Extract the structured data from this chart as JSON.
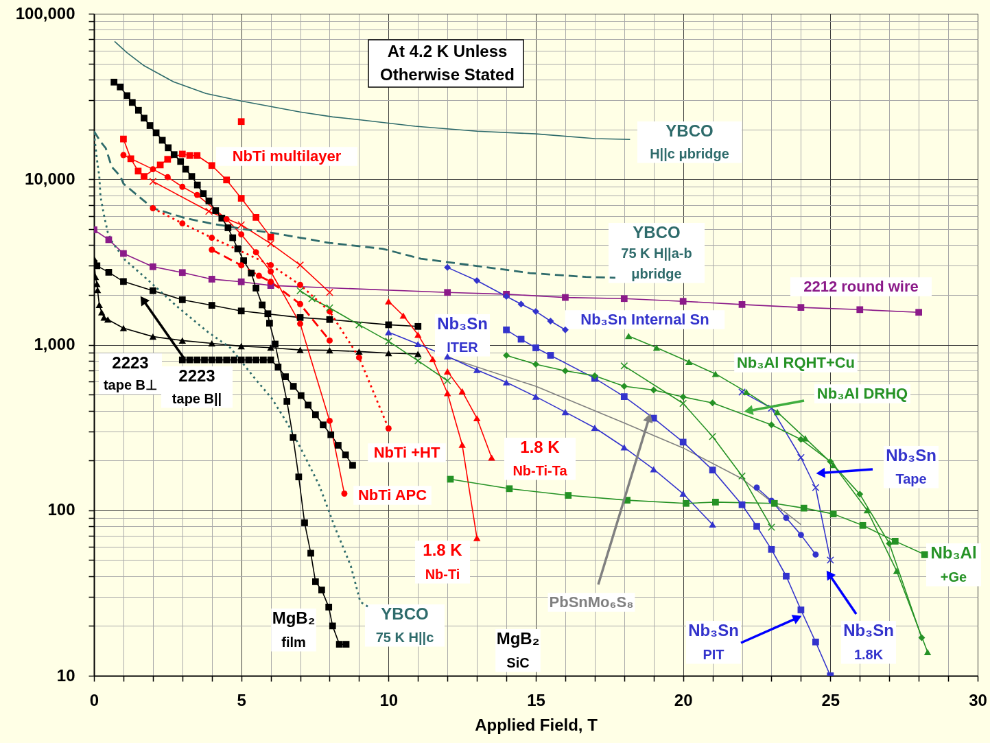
{
  "chart_data": {
    "type": "line",
    "xlabel": "Applied Field, T",
    "log": true,
    "grid": true,
    "xlim": [
      0,
      30
    ],
    "xticks": [
      0,
      {
        "value": 1,
        "label": null
      },
      {
        "value": 2,
        "label": null
      },
      {
        "value": 3,
        "label": null
      },
      {
        "value": 4,
        "label": null
      },
      5,
      {
        "value": 6,
        "label": null
      },
      {
        "value": 7,
        "label": null
      },
      {
        "value": 8,
        "label": null
      },
      {
        "value": 9,
        "label": null
      },
      10,
      {
        "value": 11,
        "label": null
      },
      {
        "value": 12,
        "label": null
      },
      {
        "value": 13,
        "label": null
      },
      {
        "value": 14,
        "label": null
      },
      15,
      {
        "value": 16,
        "label": null
      },
      {
        "value": 17,
        "label": null
      },
      {
        "value": 18,
        "label": null
      },
      {
        "value": 19,
        "label": null
      },
      20,
      {
        "value": 21,
        "label": null
      },
      {
        "value": 22,
        "label": null
      },
      {
        "value": 23,
        "label": null
      },
      {
        "value": 24,
        "label": null
      },
      25,
      {
        "value": 26,
        "label": null
      },
      {
        "value": 27,
        "label": null
      },
      {
        "value": 28,
        "label": null
      },
      {
        "value": 29,
        "label": null
      },
      30
    ],
    "ylim": [
      10,
      100000
    ],
    "yticks": [
      10,
      {
        "value": 20,
        "label": null
      },
      {
        "value": 30,
        "label": null
      },
      {
        "value": 40,
        "label": null
      },
      {
        "value": 50,
        "label": null
      },
      {
        "value": 60,
        "label": null
      },
      {
        "value": 70,
        "label": null
      },
      {
        "value": 80,
        "label": null
      },
      {
        "value": 90,
        "label": null
      },
      100,
      {
        "value": 200,
        "label": null
      },
      {
        "value": 300,
        "label": null
      },
      {
        "value": 400,
        "label": null
      },
      {
        "value": 500,
        "label": null
      },
      {
        "value": 600,
        "label": null
      },
      {
        "value": 700,
        "label": null
      },
      {
        "value": 800,
        "label": null
      },
      {
        "value": 900,
        "label": null
      },
      {
        "value": 1000,
        "label": "1,000"
      },
      {
        "value": 2000,
        "label": null
      },
      {
        "value": 3000,
        "label": null
      },
      {
        "value": 4000,
        "label": null
      },
      {
        "value": 5000,
        "label": null
      },
      {
        "value": 6000,
        "label": null
      },
      {
        "value": 7000,
        "label": null
      },
      {
        "value": 8000,
        "label": null
      },
      {
        "value": 9000,
        "label": null
      },
      {
        "value": 10000,
        "label": "10,000"
      },
      {
        "value": 20000,
        "label": null
      },
      {
        "value": 30000,
        "label": null
      },
      {
        "value": 40000,
        "label": null
      },
      {
        "value": 50000,
        "label": null
      },
      {
        "value": 60000,
        "label": null
      },
      {
        "value": 70000,
        "label": null
      },
      {
        "value": 80000,
        "label": null
      },
      {
        "value": 90000,
        "label": null
      },
      {
        "value": 100000,
        "label": "100,000"
      }
    ],
    "annotations": [
      "At 4.2 K Unless\nOtherwise Stated"
    ],
    "series": [
      {
        "name": "YBCO\nH||c μbridge",
        "color": "#2e6b6b",
        "marker": "none",
        "line_style": "solid",
        "x": [
          0.7,
          1.1,
          1.7,
          2.7,
          3.8,
          5,
          6,
          7,
          8.1,
          9,
          10.9,
          13,
          15,
          17,
          18.2
        ],
        "values": [
          68000,
          58500,
          48500,
          38800,
          33000,
          29700,
          27500,
          25500,
          23800,
          22900,
          20900,
          19500,
          18800,
          17600,
          17400
        ]
      },
      {
        "name": "YBCO\n75 K H||a-b\nμbridge",
        "color": "#2e6b6b",
        "marker": "none",
        "line_style": "dashed",
        "x": [
          0,
          0.2,
          0.4,
          0.6,
          0.9,
          1,
          2,
          3.1,
          4,
          5.1,
          6,
          7.2,
          8,
          9.8,
          11.1,
          12.9,
          14.8,
          16.7,
          17.7
        ],
        "values": [
          19500,
          17100,
          15400,
          11900,
          10400,
          9400,
          6680,
          5820,
          5390,
          4990,
          4760,
          4370,
          4120,
          3800,
          3310,
          3010,
          2710,
          2570,
          2540
        ]
      },
      {
        "name": "YBCO\n75 K H||c",
        "color": "#2e6b6b",
        "marker": "none",
        "line_style": "dotted",
        "x": [
          0,
          0.1,
          0.18,
          0.22,
          0.34,
          0.47,
          0.63,
          1.05,
          1.8,
          2.8,
          3.85,
          4.63,
          5.5,
          6.04,
          6.58,
          7.1,
          7.65,
          8.19,
          8.72,
          9.04,
          9.32
        ],
        "values": [
          19000,
          13200,
          10400,
          7900,
          6050,
          4760,
          4140,
          3260,
          2490,
          1715,
          1200,
          958,
          614,
          473,
          332,
          222,
          141,
          78,
          46,
          28,
          26
        ]
      },
      {
        "name": "2212 round wire",
        "color": "#8b1a89",
        "marker": "square",
        "line_style": "solid",
        "x": [
          0,
          0.5,
          1,
          2,
          3,
          4,
          5,
          6,
          12,
          14,
          16,
          18,
          20,
          22,
          24,
          26,
          28
        ],
        "values": [
          4950,
          4310,
          3560,
          2960,
          2730,
          2490,
          2400,
          2280,
          2070,
          2020,
          1930,
          1900,
          1830,
          1750,
          1680,
          1630,
          1570
        ]
      },
      {
        "name": "2223\ntape B||",
        "color": "#000000",
        "marker": "square",
        "line_style": "solid",
        "x": [
          0,
          0.1,
          0.5,
          1,
          2,
          3,
          4,
          5,
          7,
          8,
          10,
          11
        ],
        "values": [
          3100,
          3000,
          2740,
          2410,
          2120,
          1870,
          1730,
          1600,
          1460,
          1420,
          1320,
          1290
        ]
      },
      {
        "name": "2223\ntape B⊥",
        "color": "#000000",
        "marker": "triangle",
        "line_style": "solid",
        "x": [
          0,
          0.05,
          0.1,
          0.12,
          0.18,
          0.26,
          0.34,
          0.47,
          1,
          2,
          3,
          4,
          5,
          6,
          7,
          8,
          9,
          10,
          11
        ],
        "values": [
          3320,
          2570,
          2330,
          2140,
          1740,
          1570,
          1460,
          1420,
          1260,
          1120,
          1060,
          1020,
          980,
          960,
          930,
          925,
          910,
          890,
          880
        ]
      },
      {
        "name": "MgB₂\nfilm",
        "color": "#000000",
        "marker": "square",
        "line_style": "solid",
        "x": [
          0.68,
          0.89,
          1.12,
          1.3,
          1.51,
          1.7,
          1.9,
          2.11,
          2.32,
          2.52,
          2.72,
          2.94,
          3.11,
          3.32,
          3.51,
          3.71,
          3.9,
          4.13,
          4.34,
          4.55,
          4.71,
          4.88,
          5.08,
          5.34,
          5.5,
          5.71,
          5.9,
          5.96,
          6.15,
          6.55,
          6.76,
          6.95,
          7.15,
          7.36,
          7.52,
          7.73,
          7.97,
          8.1,
          8.33,
          8.56
        ],
        "values": [
          38600,
          36100,
          32000,
          29100,
          26100,
          23400,
          21100,
          19100,
          17200,
          15500,
          14100,
          12800,
          11500,
          10400,
          9230,
          8190,
          7390,
          6460,
          5820,
          5090,
          4430,
          3800,
          3220,
          2710,
          2200,
          1740,
          1540,
          1350,
          1010,
          455,
          275,
          159,
          84,
          55,
          37,
          33,
          26,
          20,
          15.5,
          15.5
        ]
      },
      {
        "name": "MgB₂\nSiC",
        "color": "#000000",
        "marker": "square",
        "line_style": "solid",
        "x": [
          3,
          3.25,
          3.5,
          3.75,
          4,
          4.25,
          4.5,
          4.75,
          5,
          5.25,
          5.5,
          5.75,
          6,
          6.25,
          6.5,
          6.77,
          7.03,
          7.27,
          7.52,
          7.78,
          8.04,
          8.29,
          8.54,
          8.78
        ],
        "values": [
          810,
          810,
          810,
          810,
          810,
          810,
          810,
          810,
          810,
          810,
          810,
          810,
          810,
          733,
          641,
          561,
          493,
          432,
          378,
          328,
          286,
          247,
          216,
          187
        ]
      },
      {
        "color": "#ff0000",
        "marker": "square",
        "line_style": "solid",
        "x": [
          1,
          1.25,
          1.5,
          1.7,
          2.25,
          2.5,
          3,
          3.25,
          3.5,
          4,
          4.5,
          5,
          5.5,
          6
        ],
        "values": [
          17500,
          13300,
          11200,
          10400,
          12200,
          13200,
          14200,
          13900,
          13900,
          12100,
          9900,
          7670,
          5880,
          4470
        ]
      },
      {
        "name": "NbTi APC",
        "color": "#ff0000",
        "marker": "circle",
        "line_style": "solid",
        "x": [
          1,
          2,
          2.5,
          3,
          3.5,
          4.5,
          5,
          5.5,
          6,
          7,
          8,
          8.5
        ],
        "values": [
          14000,
          11500,
          10300,
          9000,
          8040,
          5740,
          4640,
          3620,
          2770,
          1340,
          347,
          126
        ]
      },
      {
        "color": "#ff0000",
        "marker": "circle",
        "line_style": "dashed",
        "x": [
          4,
          5,
          5.6,
          6,
          7,
          8
        ],
        "values": [
          3750,
          3020,
          2610,
          2400,
          1760,
          1060
        ]
      },
      {
        "color": "#ff0000",
        "marker": "cross",
        "line_style": "solid",
        "x": [
          2,
          3.9,
          5,
          6,
          7,
          8
        ],
        "values": [
          9700,
          6400,
          5300,
          4080,
          3030,
          2070
        ]
      },
      {
        "name": "NbTi +HT",
        "color": "#ff0000",
        "marker": "circle",
        "line_style": "dotted",
        "x": [
          2,
          3,
          4,
          6,
          7,
          8,
          9,
          10
        ],
        "values": [
          6680,
          5410,
          4430,
          3030,
          2300,
          1590,
          837,
          312
        ]
      },
      {
        "name": "NbTi multilayer",
        "type": "scatter",
        "color": "#ff0000",
        "marker": "square",
        "x": [
          5
        ],
        "values": [
          22300
        ]
      },
      {
        "name": "1.8 K\nNb-Ti",
        "color": "#ff0000",
        "marker": "triangle",
        "line_style": "solid",
        "x": [
          10,
          10.5,
          11,
          11.5,
          12,
          12.5,
          13
        ],
        "values": [
          1830,
          1500,
          1150,
          818,
          510,
          249,
          68
        ]
      },
      {
        "name": "1.8 K\nNb-Ti-Ta",
        "color": "#ff0000",
        "marker": "triangle",
        "line_style": "solid",
        "x": [
          12,
          12.5,
          13,
          13.5
        ],
        "values": [
          690,
          523,
          360,
          208
        ]
      },
      {
        "color": "#259225",
        "marker": "cross",
        "line_style": "solid",
        "x": [
          7,
          7.4,
          8,
          9,
          10,
          11,
          12
        ],
        "values": [
          2120,
          1900,
          1670,
          1320,
          1050,
          800,
          606
        ]
      },
      {
        "name": "PbSnMo₆S₈",
        "color": "#808080",
        "marker": "none",
        "line_style": "solid",
        "x": [
          12,
          15,
          18,
          20,
          22,
          24
        ],
        "values": [
          840,
          561,
          337,
          238,
          155,
          82
        ]
      },
      {
        "name": "Nb₃Sn\nITER",
        "color": "#3333cc",
        "marker": "triangle",
        "line_style": "solid",
        "x": [
          10,
          11,
          12,
          13,
          14,
          15,
          16,
          17,
          18,
          19,
          20,
          21
        ],
        "values": [
          1190,
          1010,
          850,
          704,
          593,
          486,
          392,
          315,
          240,
          177,
          126,
          82
        ]
      },
      {
        "name": "Nb₃Sn Internal Sn",
        "color": "#3333cc",
        "marker": "diamond",
        "line_style": "solid",
        "x": [
          12,
          13,
          14,
          14.5,
          15,
          15.5,
          16
        ],
        "values": [
          2930,
          2440,
          1960,
          1760,
          1590,
          1390,
          1230
        ]
      },
      {
        "name": "Nb₃Sn\nPIT",
        "color": "#3333cc",
        "marker": "square",
        "line_style": "solid",
        "x": [
          14,
          14.5,
          15,
          15.5,
          17,
          18,
          19,
          20,
          21,
          22,
          22.5,
          23,
          23.5,
          24,
          24.5,
          25
        ],
        "values": [
          1230,
          1080,
          958,
          863,
          627,
          486,
          360,
          258,
          175,
          108,
          80,
          58,
          40,
          25,
          16,
          10
        ]
      },
      {
        "name": "Nb₃Sn\nTape",
        "color": "#3333cc",
        "marker": "cross",
        "line_style": "solid",
        "x": [
          22,
          23,
          24,
          24.5,
          25
        ],
        "values": [
          518,
          414,
          208,
          137,
          50
        ]
      },
      {
        "name": "Nb₃Sn\n1.8K",
        "color": "#3333cc",
        "marker": "circle",
        "line_style": "solid",
        "x": [
          22.5,
          23,
          23.5,
          24,
          24.5
        ],
        "values": [
          137,
          114,
          90,
          71,
          54
        ]
      },
      {
        "name": "Nb₃Al RQHT+Cu",
        "color": "#259225",
        "marker": "triangle",
        "line_style": "solid",
        "x": [
          18.15,
          19.1,
          20.2,
          21.1,
          22.15,
          23.2,
          24.15,
          25.1,
          26.25,
          27.25,
          28.3
        ],
        "values": [
          1130,
          960,
          788,
          667,
          518,
          392,
          272,
          188,
          100,
          43,
          13.9
        ]
      },
      {
        "name": "Nb₃Al DRHQ",
        "color": "#259225",
        "marker": "diamond",
        "line_style": "solid",
        "x": [
          14,
          15,
          16,
          17,
          18,
          19,
          20,
          21,
          23,
          24,
          25,
          26,
          27,
          28.1
        ],
        "values": [
          863,
          762,
          696,
          650,
          561,
          533,
          484,
          445,
          328,
          268,
          197,
          125,
          63,
          17
        ]
      },
      {
        "color": "#259225",
        "marker": "cross",
        "line_style": "solid",
        "x": [
          18,
          20,
          21,
          22,
          23
        ],
        "values": [
          745,
          442,
          279,
          161,
          79
        ]
      },
      {
        "name": "Nb₃Al\n+Ge",
        "color": "#259225",
        "marker": "square",
        "line_style": "solid",
        "x": [
          12.1,
          14.1,
          16.1,
          18.1,
          20.1,
          21.1,
          23.1,
          24.1,
          25.1,
          26.1,
          27.2,
          28.2
        ],
        "values": [
          154,
          135,
          123,
          115,
          110,
          112,
          110,
          103,
          95,
          81,
          65,
          54
        ]
      }
    ]
  }
}
